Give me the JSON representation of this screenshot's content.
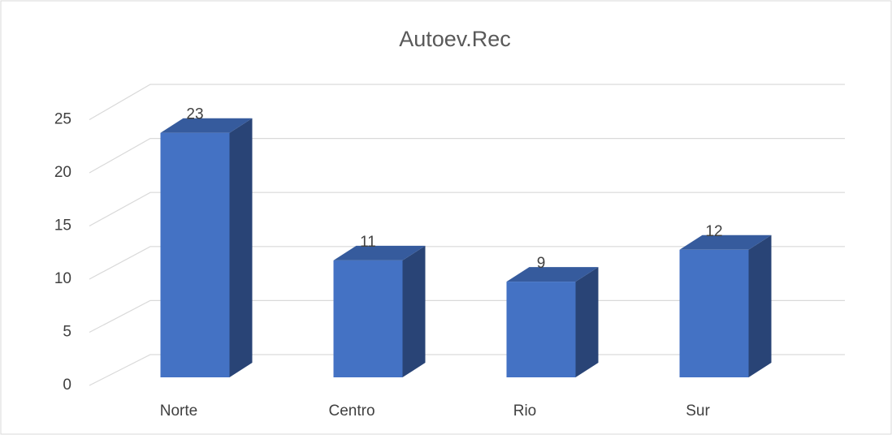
{
  "chart_data": {
    "type": "bar3d",
    "title": "Autoev.Rec",
    "categories": [
      "Norte",
      "Centro",
      "Rio",
      "Sur"
    ],
    "values": [
      23,
      11,
      9,
      12
    ],
    "color": "#4472c4",
    "ylim": [
      0,
      25
    ],
    "yticks": [
      0,
      5,
      10,
      15,
      20,
      25
    ],
    "grid": true
  }
}
